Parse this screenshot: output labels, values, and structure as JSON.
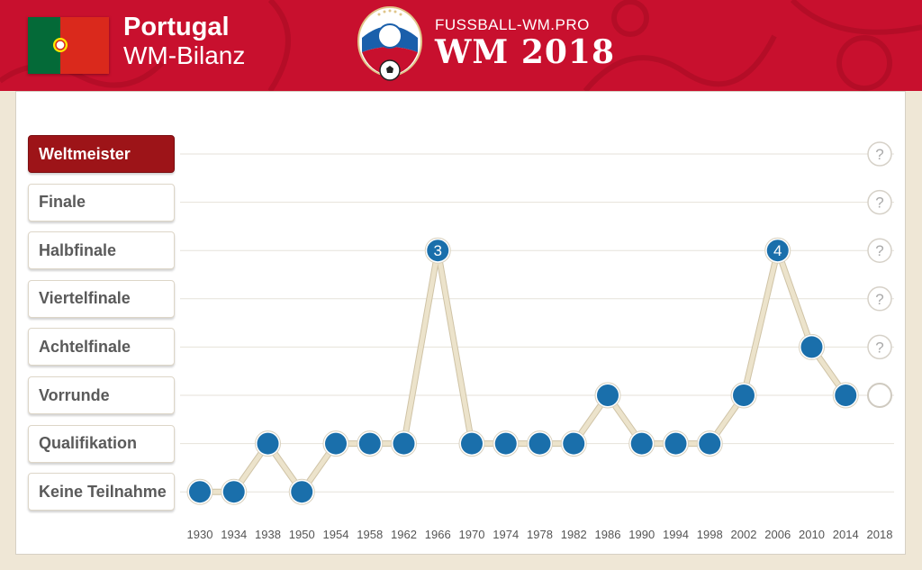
{
  "header": {
    "country": "Portugal",
    "subtitle": "WM-Bilanz",
    "site": "FUSSBALL-WM.PRO",
    "event": "WM 2018"
  },
  "colors": {
    "banner": "#c8102e",
    "active_stage": "#9d1418",
    "marker": "#1a6fab",
    "line": "#ece3cb"
  },
  "stages": [
    {
      "label": "Weltmeister",
      "active": true
    },
    {
      "label": "Finale",
      "active": false
    },
    {
      "label": "Halbfinale",
      "active": false
    },
    {
      "label": "Viertelfinale",
      "active": false
    },
    {
      "label": "Achtelfinale",
      "active": false
    },
    {
      "label": "Vorrunde",
      "active": false
    },
    {
      "label": "Qualifikation",
      "active": false
    },
    {
      "label": "Keine Teilnahme",
      "active": false
    }
  ],
  "chart_data": {
    "type": "line",
    "x": [
      "1930",
      "1934",
      "1938",
      "1950",
      "1954",
      "1958",
      "1962",
      "1966",
      "1970",
      "1974",
      "1978",
      "1982",
      "1986",
      "1990",
      "1994",
      "1998",
      "2002",
      "2006",
      "2010",
      "2014",
      "2018"
    ],
    "y_categories": [
      "Keine Teilnahme",
      "Qualifikation",
      "Vorrunde",
      "Achtelfinale",
      "Viertelfinale",
      "Halbfinale",
      "Finale",
      "Weltmeister"
    ],
    "values": [
      "Keine Teilnahme",
      "Keine Teilnahme",
      "Qualifikation",
      "Keine Teilnahme",
      "Qualifikation",
      "Qualifikation",
      "Qualifikation",
      "Halbfinale",
      "Qualifikation",
      "Qualifikation",
      "Qualifikation",
      "Qualifikation",
      "Vorrunde",
      "Qualifikation",
      "Qualifikation",
      "Qualifikation",
      "Vorrunde",
      "Halbfinale",
      "Achtelfinale",
      "Vorrunde",
      null
    ],
    "point_labels": {
      "1966": "3",
      "2006": "4"
    },
    "pending_year": "2018",
    "pending_marks": [
      "?",
      "?",
      "?",
      "?",
      "?"
    ]
  }
}
